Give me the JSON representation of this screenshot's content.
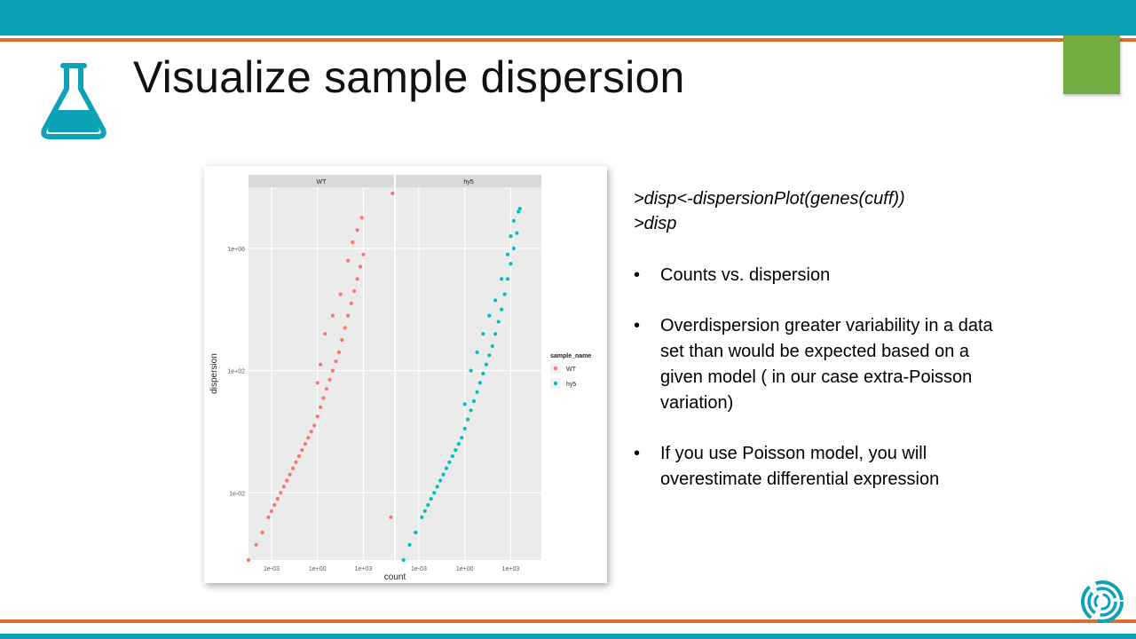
{
  "slide": {
    "title": "Visualize sample dispersion",
    "code": [
      ">disp<-dispersionPlot(genes(cuff))",
      ">disp"
    ],
    "bullets": [
      "Counts vs. dispersion",
      "Overdispersion greater variability in a data set than would be expected based on a given model ( in our case extra-Poisson variation)",
      "If you use Poisson model, you will overestimate differential expression"
    ],
    "bullet_glyph": "•",
    "icons": [
      "flask-icon",
      "logo-icon"
    ],
    "colors": {
      "header": "#0ba1b6",
      "rule": "#d86f2c",
      "accent_square": "#72ab3f"
    }
  },
  "chart_data": {
    "type": "scatter",
    "xlabel": "count",
    "ylabel": "dispersion",
    "scale": "log10-log10",
    "x_ticks": [
      "1e-03",
      "1e+00",
      "1e+03"
    ],
    "y_ticks": [
      "1e+06",
      "1e+02",
      "1e-02"
    ],
    "panels": [
      "WT",
      "hy5"
    ],
    "legend": {
      "title": "sample_name",
      "position": "right",
      "items": [
        "WT",
        "hy5"
      ]
    },
    "colors": {
      "WT": "#f8766d",
      "hy5": "#00bfc4"
    },
    "series": [
      {
        "name": "WT",
        "points": [
          [
            -4.5,
            -4.2
          ],
          [
            -4.0,
            -3.7
          ],
          [
            -3.6,
            -3.3
          ],
          [
            -3.2,
            -2.8
          ],
          [
            -3.0,
            -2.6
          ],
          [
            -2.8,
            -2.4
          ],
          [
            -2.6,
            -2.2
          ],
          [
            -2.4,
            -2.0
          ],
          [
            -2.2,
            -1.8
          ],
          [
            -2.0,
            -1.6
          ],
          [
            -1.8,
            -1.4
          ],
          [
            -1.6,
            -1.2
          ],
          [
            -1.4,
            -1.0
          ],
          [
            -1.2,
            -0.8
          ],
          [
            -1.0,
            -0.6
          ],
          [
            -0.8,
            -0.4
          ],
          [
            -0.6,
            -0.2
          ],
          [
            -0.4,
            0.0
          ],
          [
            -0.2,
            0.2
          ],
          [
            0.0,
            0.5
          ],
          [
            0.2,
            0.8
          ],
          [
            0.4,
            1.1
          ],
          [
            0.6,
            1.4
          ],
          [
            0.8,
            1.7
          ],
          [
            1.0,
            2.0
          ],
          [
            1.2,
            2.3
          ],
          [
            1.4,
            2.6
          ],
          [
            1.6,
            3.0
          ],
          [
            1.8,
            3.4
          ],
          [
            2.0,
            3.8
          ],
          [
            2.2,
            4.2
          ],
          [
            2.4,
            4.6
          ],
          [
            2.6,
            5.0
          ],
          [
            2.8,
            5.4
          ],
          [
            3.0,
            5.8
          ],
          [
            0.0,
            1.6
          ],
          [
            0.2,
            2.2
          ],
          [
            0.5,
            3.2
          ],
          [
            1.0,
            3.8
          ],
          [
            1.5,
            4.5
          ],
          [
            2.0,
            5.6
          ],
          [
            2.3,
            6.2
          ],
          [
            2.6,
            6.6
          ],
          [
            2.9,
            7.0
          ],
          [
            4.8,
            -2.8
          ],
          [
            4.9,
            7.8
          ]
        ]
      },
      {
        "name": "hy5",
        "points": [
          [
            -4.0,
            -4.2
          ],
          [
            -3.6,
            -3.7
          ],
          [
            -3.2,
            -3.3
          ],
          [
            -2.8,
            -2.8
          ],
          [
            -2.6,
            -2.6
          ],
          [
            -2.4,
            -2.4
          ],
          [
            -2.2,
            -2.2
          ],
          [
            -2.0,
            -2.0
          ],
          [
            -1.8,
            -1.8
          ],
          [
            -1.6,
            -1.6
          ],
          [
            -1.4,
            -1.4
          ],
          [
            -1.2,
            -1.2
          ],
          [
            -1.0,
            -1.0
          ],
          [
            -0.8,
            -0.8
          ],
          [
            -0.6,
            -0.6
          ],
          [
            -0.4,
            -0.4
          ],
          [
            -0.2,
            -0.2
          ],
          [
            0.0,
            0.1
          ],
          [
            0.2,
            0.4
          ],
          [
            0.4,
            0.7
          ],
          [
            0.6,
            1.0
          ],
          [
            0.8,
            1.3
          ],
          [
            1.0,
            1.6
          ],
          [
            1.2,
            1.9
          ],
          [
            1.4,
            2.2
          ],
          [
            1.6,
            2.5
          ],
          [
            1.8,
            2.8
          ],
          [
            2.0,
            3.2
          ],
          [
            2.2,
            3.6
          ],
          [
            2.4,
            4.0
          ],
          [
            2.6,
            4.5
          ],
          [
            2.8,
            5.0
          ],
          [
            3.0,
            5.5
          ],
          [
            3.2,
            6.0
          ],
          [
            3.4,
            6.5
          ],
          [
            0.0,
            0.9
          ],
          [
            0.4,
            2.0
          ],
          [
            0.8,
            2.6
          ],
          [
            1.2,
            3.2
          ],
          [
            1.6,
            3.8
          ],
          [
            2.0,
            4.3
          ],
          [
            2.4,
            5.0
          ],
          [
            2.8,
            5.8
          ],
          [
            3.0,
            6.4
          ],
          [
            3.2,
            6.9
          ],
          [
            3.5,
            7.2
          ],
          [
            3.6,
            7.3
          ]
        ]
      }
    ]
  }
}
